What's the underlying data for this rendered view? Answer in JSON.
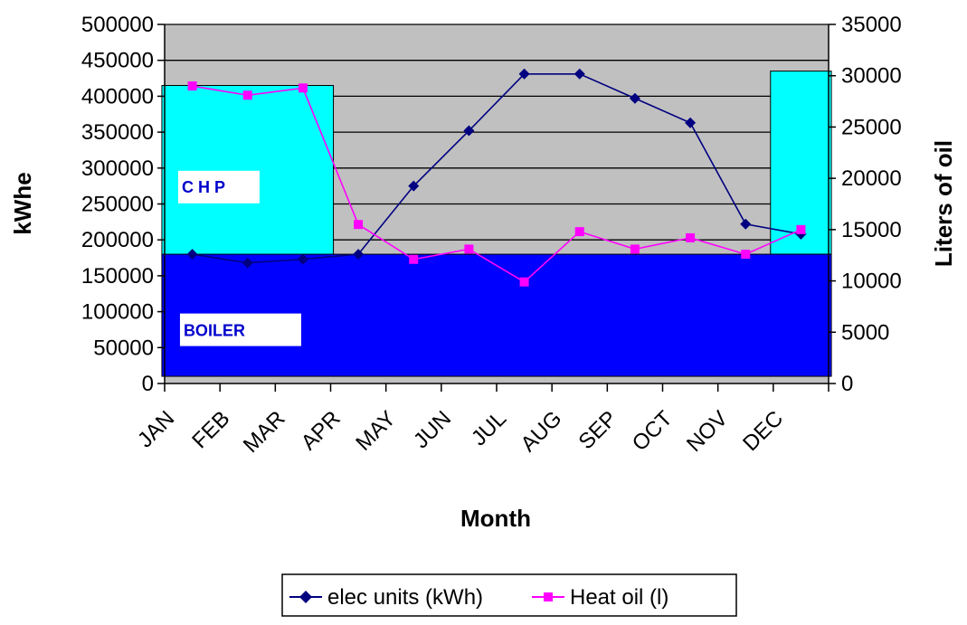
{
  "chart_data": {
    "type": "line",
    "title": "",
    "xlabel": "Month",
    "ylabel": "kWhe",
    "y2label": "Liters of oil",
    "categories": [
      "JAN",
      "FEB",
      "MAR",
      "APR",
      "MAY",
      "JUN",
      "JUL",
      "AUG",
      "SEP",
      "OCT",
      "NOV",
      "DEC"
    ],
    "ylim": [
      0,
      500000
    ],
    "y2lim": [
      0,
      35000
    ],
    "yticks": [
      0,
      50000,
      100000,
      150000,
      200000,
      250000,
      300000,
      350000,
      400000,
      450000,
      500000
    ],
    "y2ticks": [
      0,
      5000,
      10000,
      15000,
      20000,
      25000,
      30000,
      35000
    ],
    "grid": true,
    "background_color": "#c0c0c0",
    "series": [
      {
        "name": "elec units (kWh)",
        "axis": "left",
        "color": "#000080",
        "marker": "diamond",
        "values": [
          180000,
          168000,
          173000,
          180000,
          275000,
          352000,
          431000,
          431000,
          397000,
          363000,
          222000,
          208000
        ]
      },
      {
        "name": "Heat oil (l)",
        "axis": "right",
        "color": "#ff00ff",
        "marker": "square",
        "values": [
          29000,
          28100,
          28800,
          15500,
          12100,
          13100,
          9900,
          14800,
          13100,
          14200,
          12600,
          15000
        ]
      }
    ],
    "regions": [
      {
        "label": "CHP",
        "color": "#00ffff",
        "months": [
          "JAN",
          "MAR"
        ],
        "range": [
          170000,
          415000
        ]
      },
      {
        "label": "CHP",
        "color": "#00ffff",
        "months": [
          "DEC",
          "DEC"
        ],
        "range": [
          180000,
          435000
        ]
      },
      {
        "label": "BOILER",
        "color": "#0000ff",
        "months": [
          "JAN",
          "DEC"
        ],
        "range": [
          10000,
          180000
        ]
      }
    ],
    "annotations": [
      "C H P",
      "BOILER"
    ],
    "legend_position": "bottom"
  },
  "colors": {
    "plot_background": "#c0c0c0",
    "chp_region": "#00ffff",
    "boiler_region": "#0000ff",
    "annotation_text": "#0000cc"
  }
}
